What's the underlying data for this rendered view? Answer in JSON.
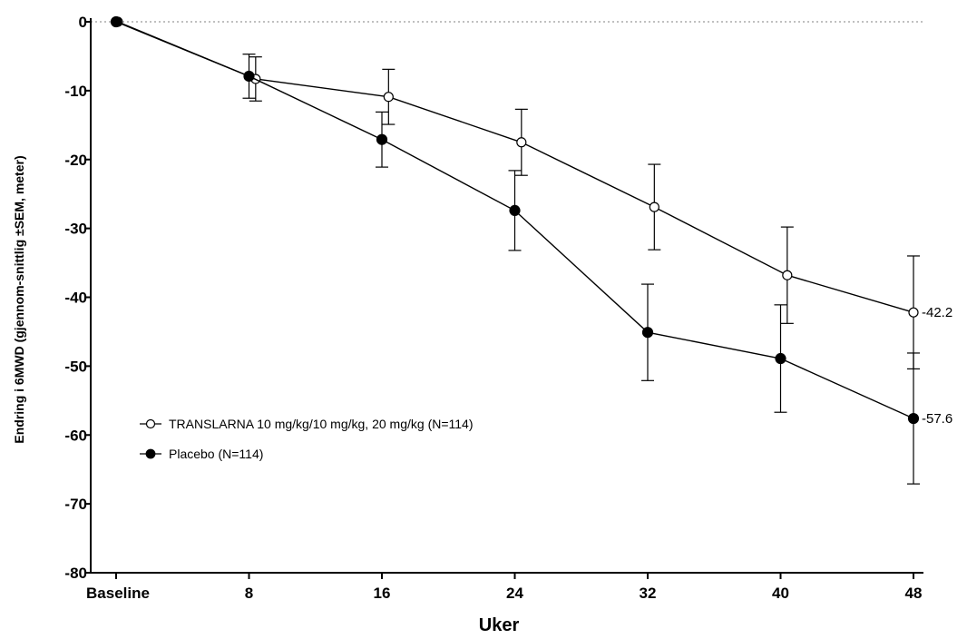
{
  "chart_data": {
    "type": "line",
    "xlabel": "Uker",
    "ylabel": "Endring i 6MWD (gjennom-snittlig ±SEM, meter)",
    "x_categories": [
      "Baseline",
      "8",
      "16",
      "24",
      "32",
      "40",
      "48"
    ],
    "ylim": [
      -80,
      0
    ],
    "yticks": [
      0,
      -10,
      -20,
      -30,
      -40,
      -50,
      -60,
      -70,
      -80
    ],
    "reference_line_y": 0,
    "legend_position": "lower-left",
    "series": [
      {
        "name": "TRANSLARNA 10 mg/kg/10 mg/kg, 20 mg/kg (N=114)",
        "marker": "open-circle",
        "x": [
          0.1,
          8.4,
          16.4,
          24.4,
          32.4,
          40.4,
          48
        ],
        "y": [
          0,
          -8.3,
          -10.9,
          -17.5,
          -26.9,
          -36.8,
          -42.2
        ],
        "err": [
          0,
          3.2,
          4.0,
          4.8,
          6.2,
          7.0,
          8.2
        ],
        "end_label": "-42.2"
      },
      {
        "name": "Placebo (N=114)",
        "marker": "filled-circle",
        "x": [
          0,
          8,
          16,
          24,
          32,
          40,
          48
        ],
        "y": [
          0,
          -7.9,
          -17.1,
          -27.4,
          -45.1,
          -48.9,
          -57.6
        ],
        "err": [
          0,
          3.2,
          4.0,
          5.8,
          7.0,
          7.8,
          9.5
        ],
        "end_label": "-57.6"
      }
    ]
  }
}
